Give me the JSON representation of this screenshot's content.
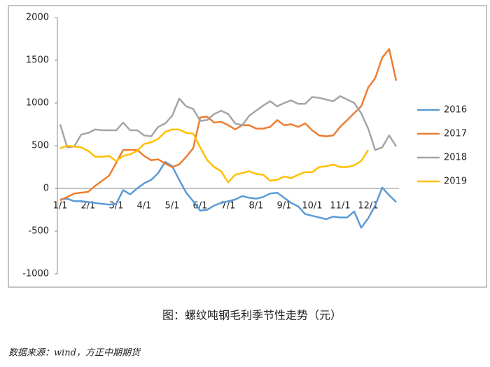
{
  "chart_data": {
    "type": "line",
    "title": "图：螺纹吨钢毛利季节性走势（元）",
    "source": "数据来源：wind，方正中期期货",
    "categories": [
      "1/1",
      null,
      null,
      null,
      "2/1",
      null,
      null,
      null,
      "3/1",
      null,
      null,
      null,
      "4/1",
      null,
      null,
      null,
      "5/1",
      null,
      null,
      null,
      "6/1",
      null,
      null,
      null,
      "7/1",
      null,
      null,
      null,
      "8/1",
      null,
      null,
      null,
      "9/1",
      null,
      null,
      null,
      "10/1",
      null,
      null,
      null,
      "11/1",
      null,
      null,
      null,
      "12/1",
      null,
      null,
      null,
      null
    ],
    "ylim": [
      -1000,
      2000
    ],
    "yticks": [
      -1000,
      -500,
      0,
      500,
      1000,
      1500,
      2000
    ],
    "grid": false,
    "legend": "right",
    "series": [
      {
        "name": "2016",
        "color": "#5b9bd5",
        "values": [
          -130,
          -120,
          -150,
          -150,
          -160,
          -170,
          -180,
          -190,
          -180,
          -20,
          -70,
          0,
          60,
          100,
          180,
          310,
          260,
          100,
          -50,
          -150,
          -260,
          -250,
          -200,
          -170,
          -150,
          -130,
          -90,
          -110,
          -120,
          -100,
          -60,
          -50,
          -110,
          -170,
          -210,
          -300,
          -320,
          -340,
          -360,
          -330,
          -340,
          -340,
          -270,
          -460,
          -350,
          -200,
          10,
          -80,
          -160
        ]
      },
      {
        "name": "2017",
        "color": "#ed7d31",
        "values": [
          -140,
          -100,
          -60,
          -50,
          -40,
          30,
          90,
          150,
          300,
          450,
          450,
          450,
          380,
          330,
          340,
          290,
          250,
          280,
          370,
          470,
          830,
          840,
          770,
          780,
          740,
          690,
          740,
          740,
          700,
          700,
          720,
          800,
          740,
          750,
          720,
          760,
          680,
          620,
          610,
          620,
          720,
          800,
          880,
          960,
          1180,
          1290,
          1530,
          1630,
          1260
        ]
      },
      {
        "name": "2018",
        "color": "#a5a5a5",
        "values": [
          750,
          480,
          490,
          630,
          650,
          690,
          680,
          680,
          680,
          770,
          680,
          680,
          620,
          610,
          720,
          760,
          850,
          1050,
          960,
          930,
          790,
          800,
          870,
          910,
          870,
          760,
          740,
          850,
          910,
          970,
          1020,
          960,
          1000,
          1030,
          990,
          990,
          1070,
          1060,
          1040,
          1020,
          1080,
          1040,
          1000,
          880,
          700,
          450,
          480,
          620,
          490
        ]
      },
      {
        "name": "2019",
        "color": "#ffc000",
        "values": [
          470,
          500,
          490,
          480,
          440,
          370,
          370,
          380,
          320,
          380,
          400,
          440,
          520,
          540,
          580,
          660,
          690,
          690,
          650,
          640,
          480,
          330,
          250,
          200,
          70,
          160,
          180,
          200,
          170,
          160,
          90,
          100,
          140,
          120,
          160,
          190,
          190,
          250,
          260,
          280,
          250,
          250,
          270,
          320,
          450,
          null,
          null,
          null,
          null
        ]
      }
    ]
  }
}
